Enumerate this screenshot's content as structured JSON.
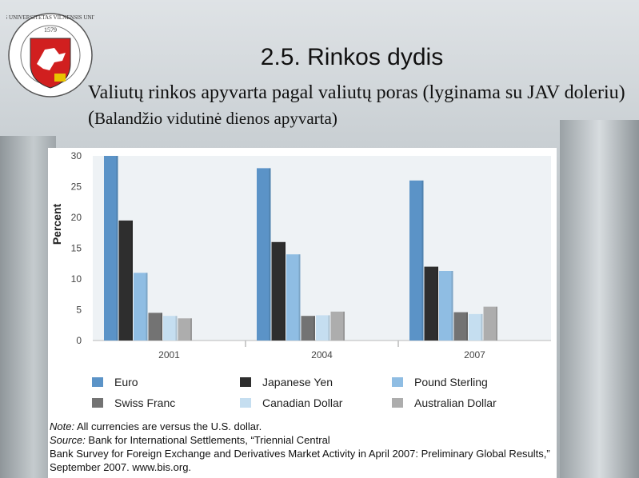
{
  "slide": {
    "title": "2.5. Rinkos dydis",
    "subtitle_main": "Valiutų rinkos apyvarta pagal valiutų poras (lyginama su JAV doleriu) (",
    "subtitle_small": "Balandžio vidutinė dienos apyvarta)"
  },
  "logo": {
    "ring_text": "VILNIAUS UNIVERSITETAS VILNENSIS UNIVERSITAS",
    "year": "1579"
  },
  "chart_data": {
    "type": "bar",
    "categories": [
      "2001",
      "2004",
      "2007"
    ],
    "ylabel": "Percent",
    "ylim": [
      0,
      30
    ],
    "yticks": [
      "0",
      "5",
      "10",
      "15",
      "20",
      "25",
      "30"
    ],
    "grid": false,
    "legend_position": "bottom",
    "series": [
      {
        "name": "Euro",
        "color": "#5b93c7",
        "values": [
          30,
          28,
          26
        ]
      },
      {
        "name": "Japanese Yen",
        "color": "#2e2e2e",
        "values": [
          19.5,
          16,
          12
        ]
      },
      {
        "name": "Pound Sterling",
        "color": "#8fbde3",
        "values": [
          11,
          14,
          11.3
        ]
      },
      {
        "name": "Swiss Franc",
        "color": "#737373",
        "values": [
          4.5,
          4,
          4.6
        ]
      },
      {
        "name": "Canadian Dollar",
        "color": "#c5def0",
        "values": [
          4,
          4.1,
          4.3
        ]
      },
      {
        "name": "Australian Dollar",
        "color": "#adadad",
        "values": [
          3.6,
          4.7,
          5.5
        ]
      }
    ]
  },
  "notes": {
    "note_label": "Note:",
    "note_text": " All currencies are versus the U.S. dollar.",
    "source_label": "Source:",
    "source_text": " Bank for International Settlements, “Triennial Central",
    "source_line2": "Bank Survey for Foreign Exchange and Derivatives Market Activity in April 2007: Preliminary Global Results,”",
    "source_line3": "September 2007. www.bis.org."
  }
}
